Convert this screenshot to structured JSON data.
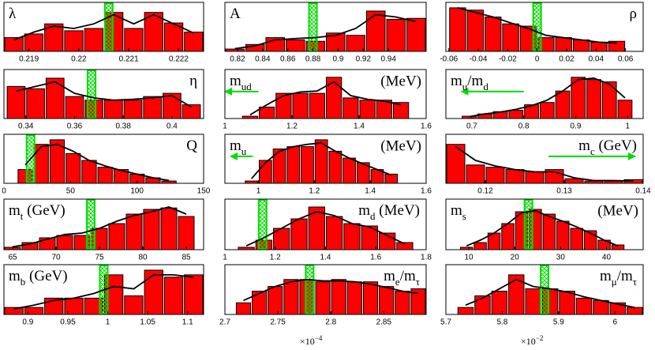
{
  "chart_data": [
    {
      "type": "histogram",
      "label": [
        {
          "text": "λ"
        }
      ],
      "label_corner": "left",
      "bins": [
        0.2185,
        0.2189,
        0.2193,
        0.2197,
        0.2201,
        0.2205,
        0.2209,
        0.2213,
        0.2217,
        0.2221,
        0.2225
      ],
      "counts": [
        0.3,
        0.38,
        0.6,
        0.45,
        0.5,
        0.85,
        0.5,
        0.85,
        0.62,
        0.42
      ],
      "line": [
        0.25,
        0.42,
        0.55,
        0.5,
        0.6,
        0.8,
        0.6,
        0.8,
        0.6,
        0.4
      ],
      "highlight": 0.2206,
      "xlim": [
        0.2185,
        0.2225
      ],
      "ylim": [
        0,
        1
      ],
      "xticks": [
        0.219,
        0.22,
        0.221,
        0.222
      ],
      "color": "#ff0000",
      "highlight_color": "#00dd00"
    },
    {
      "type": "histogram",
      "label": [
        {
          "text": "A"
        }
      ],
      "label_corner": "left",
      "bins": [
        0.81,
        0.826,
        0.842,
        0.858,
        0.874,
        0.89,
        0.906,
        0.922,
        0.938,
        0.954,
        0.97
      ],
      "counts": [
        0.05,
        0.15,
        0.3,
        0.25,
        0.22,
        0.4,
        0.35,
        0.88,
        0.7,
        0.72
      ],
      "line": [
        0.06,
        0.12,
        0.25,
        0.28,
        0.3,
        0.35,
        0.5,
        0.8,
        0.75,
        0.65
      ],
      "highlight": 0.88,
      "xlim": [
        0.81,
        0.97
      ],
      "ylim": [
        0,
        1
      ],
      "xticks": [
        0.82,
        0.84,
        0.86,
        0.88,
        0.9,
        0.92,
        0.94
      ],
      "color": "#ff0000",
      "highlight_color": "#00dd00"
    },
    {
      "type": "histogram",
      "label": [
        {
          "text": "ρ"
        }
      ],
      "label_corner": "right",
      "bins": [
        -0.06,
        -0.048,
        -0.036,
        -0.024,
        -0.012,
        0,
        0.012,
        0.024,
        0.036,
        0.048,
        0.06
      ],
      "counts": [
        0.95,
        0.9,
        0.75,
        0.6,
        0.55,
        0.3,
        0.3,
        0.25,
        0.2,
        0.22
      ],
      "line": [
        0.95,
        0.85,
        0.75,
        0.62,
        0.5,
        0.35,
        0.3,
        0.25,
        0.2,
        0.18
      ],
      "highlight": 0,
      "xlim": [
        -0.062,
        0.072
      ],
      "ylim": [
        0,
        1
      ],
      "xticks": [
        -0.06,
        -0.04,
        -0.02,
        0,
        0.02,
        0.04,
        0.06
      ],
      "color": "#ff0000",
      "highlight_color": "#00dd00"
    },
    {
      "type": "histogram",
      "label": [
        {
          "text": "η"
        }
      ],
      "label_corner": "right",
      "bins": [
        0.332,
        0.34,
        0.348,
        0.356,
        0.364,
        0.372,
        0.38,
        0.388,
        0.396,
        0.404,
        0.412
      ],
      "counts": [
        0.7,
        0.65,
        0.88,
        0.48,
        0.4,
        0.4,
        0.4,
        0.48,
        0.55,
        0.3
      ],
      "line": [
        0.6,
        0.7,
        0.8,
        0.55,
        0.45,
        0.4,
        0.42,
        0.45,
        0.5,
        0.25
      ],
      "highlight": 0.367,
      "xlim": [
        0.331,
        0.413
      ],
      "ylim": [
        0,
        1
      ],
      "xticks": [
        0.34,
        0.36,
        0.38,
        0.4
      ],
      "color": "#ff0000",
      "highlight_color": "#00dd00"
    },
    {
      "type": "histogram",
      "label": [
        {
          "text": "m"
        },
        {
          "text": "ud",
          "sub": true
        }
      ],
      "label_corner": "left",
      "unit": "(MeV)",
      "bins": [
        1.05,
        1.1,
        1.15,
        1.2,
        1.25,
        1.3,
        1.35,
        1.4,
        1.45,
        1.5,
        1.55
      ],
      "counts": [
        0.05,
        0.25,
        0.55,
        0.55,
        0.55,
        0.9,
        0.45,
        0.4,
        0.4,
        0.35
      ],
      "line": [
        0.08,
        0.3,
        0.5,
        0.58,
        0.6,
        0.8,
        0.5,
        0.42,
        0.38,
        0.3
      ],
      "arrow": [
        1.1,
        1.0
      ],
      "xlim": [
        1,
        1.6
      ],
      "ylim": [
        0,
        1
      ],
      "xticks": [
        1,
        1.2,
        1.4,
        1.6
      ],
      "color": "#ff0000",
      "highlight_color": "#00dd00"
    },
    {
      "type": "histogram",
      "label": [
        {
          "text": "m"
        },
        {
          "text": "u",
          "sub": true
        },
        {
          "text": "/m"
        },
        {
          "text": "d",
          "sub": true
        }
      ],
      "label_corner": "left",
      "bins": [
        0.68,
        0.71,
        0.74,
        0.77,
        0.8,
        0.83,
        0.86,
        0.89,
        0.92,
        0.95,
        0.98,
        1.01
      ],
      "counts": [
        0.05,
        0.1,
        0.15,
        0.18,
        0.3,
        0.35,
        0.6,
        0.9,
        0.85,
        0.8,
        0.4
      ],
      "line": [
        0.04,
        0.1,
        0.14,
        0.2,
        0.28,
        0.4,
        0.6,
        0.85,
        0.88,
        0.75,
        0.45
      ],
      "arrow": [
        0.8,
        0.68
      ],
      "xlim": [
        0.65,
        1.03
      ],
      "ylim": [
        0,
        1
      ],
      "xticks": [
        0.7,
        0.8,
        0.9,
        1
      ],
      "color": "#ff0000",
      "highlight_color": "#00dd00"
    },
    {
      "type": "histogram",
      "label": [
        {
          "text": "Q"
        }
      ],
      "label_corner": "right",
      "bins": [
        10,
        22,
        34,
        46,
        58,
        70,
        82,
        94,
        106,
        118,
        130
      ],
      "counts": [
        0.3,
        0.85,
        0.95,
        0.65,
        0.5,
        0.35,
        0.3,
        0.2,
        0.12,
        0.05
      ],
      "line": [
        0.4,
        0.8,
        0.85,
        0.7,
        0.5,
        0.38,
        0.28,
        0.2,
        0.12,
        0.06
      ],
      "highlight": 20,
      "xlim": [
        0,
        150
      ],
      "ylim": [
        0,
        1
      ],
      "xticks": [
        0,
        50,
        100,
        150
      ],
      "color": "#ff0000",
      "highlight_color": "#00dd00"
    },
    {
      "type": "histogram",
      "label": [
        {
          "text": "m"
        },
        {
          "text": "u",
          "sub": true
        }
      ],
      "label_corner": "left",
      "unit": "(MeV)",
      "bins": [
        0.95,
        1,
        1.05,
        1.1,
        1.15,
        1.2,
        1.25,
        1.3,
        1.35,
        1.4,
        1.45,
        1.5
      ],
      "counts": [
        0.05,
        0.5,
        0.75,
        0.8,
        0.8,
        0.95,
        0.7,
        0.55,
        0.45,
        0.3,
        0.2
      ],
      "line": [
        0.1,
        0.45,
        0.7,
        0.8,
        0.85,
        0.88,
        0.7,
        0.55,
        0.42,
        0.3,
        0.18
      ],
      "arrow": [
        0.98,
        0.9
      ],
      "xlim": [
        0.88,
        1.6
      ],
      "ylim": [
        0,
        1
      ],
      "xticks": [
        1,
        1.2,
        1.4,
        1.6
      ],
      "color": "#ff0000",
      "highlight_color": "#00dd00"
    },
    {
      "type": "histogram",
      "label": [
        {
          "text": "m"
        },
        {
          "text": "c",
          "sub": true
        },
        {
          "text": " (GeV)"
        }
      ],
      "label_corner": "right",
      "bins": [
        0.115,
        0.1175,
        0.12,
        0.1225,
        0.125,
        0.1275,
        0.13,
        0.1325,
        0.135,
        0.1375,
        0.14
      ],
      "counts": [
        0.85,
        0.4,
        0.35,
        0.3,
        0.25,
        0.3,
        0.1,
        0.05,
        0.05,
        0.08
      ],
      "line": [
        0.8,
        0.5,
        0.38,
        0.3,
        0.25,
        0.25,
        0.12,
        0.06,
        0.06,
        0.05
      ],
      "arrow": [
        0.128,
        0.139
      ],
      "xlim": [
        0.115,
        0.14
      ],
      "ylim": [
        0,
        1
      ],
      "xticks": [
        0.12,
        0.13,
        0.14
      ],
      "color": "#ff0000",
      "highlight_color": "#00dd00"
    },
    {
      "type": "histogram",
      "label": [
        {
          "text": "m"
        },
        {
          "text": "t",
          "sub": true
        },
        {
          "text": " (GeV)"
        }
      ],
      "label_corner": "left",
      "bins": [
        64,
        66,
        68,
        70,
        72,
        74,
        76,
        78,
        80,
        82,
        84,
        86
      ],
      "counts": [
        0.05,
        0.15,
        0.25,
        0.3,
        0.3,
        0.45,
        0.55,
        0.75,
        0.85,
        0.88,
        0.7
      ],
      "line": [
        0.06,
        0.12,
        0.22,
        0.32,
        0.35,
        0.45,
        0.6,
        0.72,
        0.8,
        0.9,
        0.75
      ],
      "highlight": 74,
      "xlim": [
        64,
        87
      ],
      "ylim": [
        0,
        1
      ],
      "xticks": [
        65,
        70,
        75,
        80,
        85
      ],
      "color": "#ff0000",
      "highlight_color": "#00dd00"
    },
    {
      "type": "histogram",
      "label": [
        {
          "text": "m"
        },
        {
          "text": "d",
          "sub": true
        },
        {
          "text": " (MeV)"
        }
      ],
      "label_corner": "right",
      "bins": [
        1.05,
        1.12,
        1.19,
        1.26,
        1.33,
        1.4,
        1.47,
        1.54,
        1.61,
        1.68,
        1.75
      ],
      "counts": [
        0.05,
        0.2,
        0.45,
        0.65,
        0.9,
        0.7,
        0.55,
        0.5,
        0.35,
        0.15
      ],
      "line": [
        0.08,
        0.25,
        0.45,
        0.65,
        0.8,
        0.72,
        0.55,
        0.48,
        0.3,
        0.12
      ],
      "highlight": 1.15,
      "xlim": [
        1,
        1.8
      ],
      "ylim": [
        0,
        1
      ],
      "xticks": [
        1,
        1.2,
        1.4,
        1.6,
        1.8
      ],
      "color": "#ff0000",
      "highlight_color": "#00dd00"
    },
    {
      "type": "histogram",
      "label": [
        {
          "text": "m"
        },
        {
          "text": "s",
          "sub": true
        }
      ],
      "label_corner": "left",
      "unit": "(MeV)",
      "bins": [
        8,
        11,
        14,
        17,
        20,
        23,
        26,
        29,
        32,
        35,
        38,
        41,
        44
      ],
      "counts": [
        0.05,
        0.15,
        0.35,
        0.55,
        0.8,
        0.85,
        0.75,
        0.6,
        0.45,
        0.4,
        0.2,
        0.1
      ],
      "line": [
        0.08,
        0.2,
        0.35,
        0.55,
        0.78,
        0.82,
        0.7,
        0.6,
        0.48,
        0.35,
        0.2,
        0.08
      ],
      "highlight": 23,
      "xlim": [
        5,
        48
      ],
      "ylim": [
        0,
        1
      ],
      "xticks": [
        10,
        20,
        30,
        40
      ],
      "color": "#ff0000",
      "highlight_color": "#00dd00"
    },
    {
      "type": "histogram",
      "label": [
        {
          "text": "m"
        },
        {
          "text": "b",
          "sub": true
        },
        {
          "text": " (GeV)"
        }
      ],
      "label_corner": "left",
      "bins": [
        0.87,
        0.895,
        0.92,
        0.945,
        0.97,
        0.995,
        1.02,
        1.045,
        1.07,
        1.095,
        1.12
      ],
      "counts": [
        0.15,
        0.15,
        0.35,
        0.35,
        0.35,
        0.85,
        0.4,
        0.95,
        0.8,
        0.85
      ],
      "line": [
        0.12,
        0.2,
        0.3,
        0.35,
        0.45,
        0.6,
        0.55,
        0.85,
        0.85,
        0.8
      ],
      "highlight": 0.995,
      "xlim": [
        0.87,
        1.12
      ],
      "ylim": [
        0,
        1
      ],
      "xticks": [
        0.9,
        0.95,
        1,
        1.05,
        1.1
      ],
      "color": "#ff0000",
      "highlight_color": "#00dd00"
    },
    {
      "type": "histogram",
      "label": [
        {
          "text": "m"
        },
        {
          "text": "e",
          "sub": true
        },
        {
          "text": "/m"
        },
        {
          "text": "τ",
          "sub": true
        }
      ],
      "label_corner": "right",
      "bins": [
        2.71,
        2.725,
        2.74,
        2.755,
        2.77,
        2.785,
        2.8,
        2.815,
        2.83,
        2.845,
        2.86,
        2.875,
        2.89
      ],
      "counts": [
        0.25,
        0.5,
        0.6,
        0.75,
        0.75,
        0.7,
        0.75,
        0.7,
        0.7,
        0.6,
        0.5,
        0.55
      ],
      "line": [
        0.3,
        0.45,
        0.6,
        0.7,
        0.75,
        0.72,
        0.72,
        0.7,
        0.65,
        0.58,
        0.5,
        0.45
      ],
      "highlight": 2.78,
      "xlim": [
        2.7,
        2.89
      ],
      "ylim": [
        0,
        1
      ],
      "xticks": [
        2.7,
        2.75,
        2.8,
        2.85
      ],
      "axis_note": [
        {
          "text": "×10"
        },
        {
          "text": "−4",
          "sup": true
        }
      ],
      "color": "#ff0000",
      "highlight_color": "#00dd00"
    },
    {
      "type": "histogram",
      "label": [
        {
          "text": "m"
        },
        {
          "text": "μ",
          "sub": true
        },
        {
          "text": "/m"
        },
        {
          "text": "τ",
          "sub": true
        }
      ],
      "label_corner": "right",
      "bins": [
        5.72,
        5.75,
        5.78,
        5.81,
        5.84,
        5.87,
        5.9,
        5.93,
        5.96,
        5.99,
        6.02,
        6.05
      ],
      "counts": [
        0.15,
        0.4,
        0.5,
        0.85,
        0.55,
        0.55,
        0.5,
        0.35,
        0.3,
        0.25,
        0.15
      ],
      "line": [
        0.2,
        0.35,
        0.55,
        0.75,
        0.6,
        0.55,
        0.48,
        0.38,
        0.3,
        0.22,
        0.15
      ],
      "highlight": 5.875,
      "xlim": [
        5.7,
        6.05
      ],
      "ylim": [
        0,
        1
      ],
      "xticks": [
        5.7,
        5.8,
        5.9,
        6
      ],
      "axis_note": [
        {
          "text": "×10"
        },
        {
          "text": "−2",
          "sup": true
        }
      ],
      "color": "#ff0000",
      "highlight_color": "#00dd00"
    }
  ]
}
